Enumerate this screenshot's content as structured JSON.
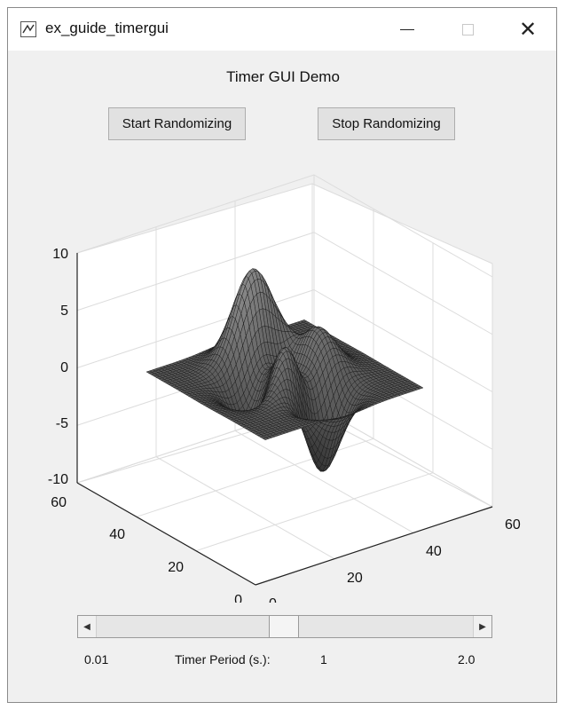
{
  "window": {
    "title": "ex_guide_timergui",
    "icon": "matlab-figure-icon",
    "controls": {
      "minimize_icon": "minimize-icon",
      "maximize_icon": "maximize-icon",
      "close_icon": "close-icon"
    }
  },
  "gui": {
    "title": "Timer GUI Demo",
    "start_button": "Start Randomizing",
    "stop_button": "Stop Randomizing"
  },
  "chart_data": {
    "type": "surface",
    "z_ticks": [
      "10",
      "5",
      "0",
      "-5",
      "-10"
    ],
    "x_ticks": [
      "0",
      "20",
      "40",
      "60"
    ],
    "y_ticks": [
      "0",
      "20",
      "40",
      "60"
    ],
    "zlim": [
      -10,
      10
    ],
    "xlim": [
      0,
      60
    ],
    "ylim": [
      0,
      60
    ],
    "grid": true,
    "colors": {
      "surface_dark": "#1a1a1a",
      "surface_light": "#9a9a9a",
      "grid": "#dcdcdc",
      "axes_bg": "#ffffff"
    }
  },
  "slider": {
    "min_label": "0.01",
    "max_label": "2.0",
    "caption": "Timer Period (s.):",
    "value_label": "1",
    "min": 0.01,
    "max": 2.0,
    "value": 1.0
  }
}
